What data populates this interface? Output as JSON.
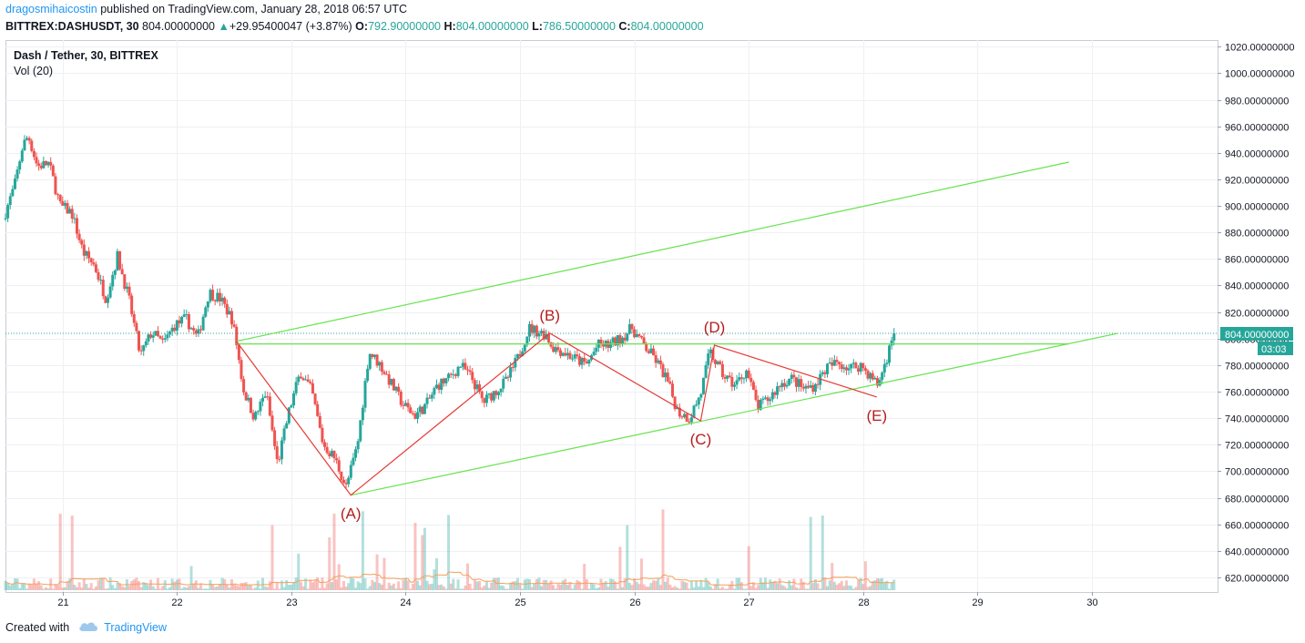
{
  "header": {
    "author": "dragosmihaicostin",
    "published": "published on TradingView.com, January 28, 2018 06:57 UTC",
    "symbol": "BITTREX:DASHUSDT, 30",
    "last": "804.00000000",
    "change": "+29.95400047 (+3.87%)",
    "o_label": "O:",
    "o_value": "792.90000000",
    "h_label": "H:",
    "h_value": "804.00000000",
    "l_label": "L:",
    "l_value": "786.50000000",
    "c_label": "C:",
    "c_value": "804.00000000"
  },
  "pane": {
    "title": "Dash / Tether, 30, BITTREX",
    "indicator": "Vol (20)",
    "price_tag": "804.00000000",
    "countdown": "03:03"
  },
  "footer": {
    "created_with": "Created with",
    "brand": "TradingView"
  },
  "colors": {
    "up": "#26a69a",
    "down": "#ef5350",
    "channel": "#66e34c",
    "wave": "#e53935",
    "wave_label": "#b71c1c",
    "price_tag_bg": "#26a69a"
  },
  "chart_data": {
    "type": "candlestick",
    "title": "Dash / Tether, 30, BITTREX",
    "yaxis": {
      "ticks": [
        "620.00000000",
        "640.00000000",
        "660.00000000",
        "680.00000000",
        "700.00000000",
        "720.00000000",
        "740.00000000",
        "760.00000000",
        "780.00000000",
        "800.00000000",
        "820.00000000",
        "840.00000000",
        "860.00000000",
        "880.00000000",
        "900.00000000",
        "920.00000000",
        "940.00000000",
        "960.00000000",
        "980.00000000",
        "1000.00000000",
        "1020.00000000"
      ],
      "range": [
        609,
        1025
      ]
    },
    "xaxis": {
      "ticks": [
        "21",
        "22",
        "23",
        "24",
        "25",
        "26",
        "27",
        "28",
        "29",
        "30"
      ],
      "range": [
        20.5,
        31.1
      ]
    },
    "price_path": [
      [
        20.5,
        890
      ],
      [
        20.6,
        915
      ],
      [
        20.67,
        945
      ],
      [
        20.72,
        953
      ],
      [
        20.8,
        930
      ],
      [
        20.9,
        932
      ],
      [
        21.0,
        900
      ],
      [
        21.1,
        895
      ],
      [
        21.2,
        865
      ],
      [
        21.3,
        855
      ],
      [
        21.4,
        830
      ],
      [
        21.5,
        862
      ],
      [
        21.6,
        830
      ],
      [
        21.7,
        787
      ],
      [
        21.8,
        805
      ],
      [
        21.9,
        796
      ],
      [
        22.0,
        810
      ],
      [
        22.1,
        815
      ],
      [
        22.2,
        800
      ],
      [
        22.3,
        835
      ],
      [
        22.4,
        830
      ],
      [
        22.5,
        815
      ],
      [
        22.54,
        797
      ],
      [
        22.6,
        762
      ],
      [
        22.7,
        740
      ],
      [
        22.8,
        760
      ],
      [
        22.9,
        705
      ],
      [
        23.0,
        745
      ],
      [
        23.1,
        775
      ],
      [
        23.2,
        760
      ],
      [
        23.3,
        720
      ],
      [
        23.4,
        710
      ],
      [
        23.5,
        688
      ],
      [
        23.6,
        720
      ],
      [
        23.7,
        790
      ],
      [
        23.8,
        780
      ],
      [
        23.9,
        765
      ],
      [
        24.0,
        750
      ],
      [
        24.1,
        742
      ],
      [
        24.2,
        750
      ],
      [
        24.3,
        765
      ],
      [
        24.4,
        770
      ],
      [
        24.5,
        780
      ],
      [
        24.6,
        770
      ],
      [
        24.7,
        752
      ],
      [
        24.8,
        760
      ],
      [
        24.9,
        768
      ],
      [
        25.0,
        785
      ],
      [
        25.1,
        808
      ],
      [
        25.25,
        803
      ],
      [
        25.3,
        794
      ],
      [
        25.4,
        790
      ],
      [
        25.5,
        785
      ],
      [
        25.6,
        780
      ],
      [
        25.7,
        795
      ],
      [
        25.8,
        795
      ],
      [
        25.9,
        800
      ],
      [
        26.0,
        808
      ],
      [
        26.1,
        795
      ],
      [
        26.2,
        785
      ],
      [
        26.3,
        770
      ],
      [
        26.4,
        745
      ],
      [
        26.5,
        740
      ],
      [
        26.6,
        758
      ],
      [
        26.68,
        790
      ],
      [
        26.8,
        772
      ],
      [
        26.9,
        765
      ],
      [
        27.0,
        776
      ],
      [
        27.1,
        748
      ],
      [
        27.2,
        755
      ],
      [
        27.3,
        766
      ],
      [
        27.4,
        770
      ],
      [
        27.5,
        762
      ],
      [
        27.6,
        765
      ],
      [
        27.7,
        778
      ],
      [
        27.8,
        782
      ],
      [
        27.9,
        778
      ],
      [
        28.0,
        780
      ],
      [
        28.1,
        770
      ],
      [
        28.15,
        765
      ],
      [
        28.2,
        778
      ],
      [
        28.25,
        792
      ],
      [
        28.28,
        804
      ]
    ],
    "volume_baseline_ma": [
      614,
      619
    ],
    "last_price": 804,
    "annotations": {
      "waves": [
        "(A)",
        "(B)",
        "(C)",
        "(D)",
        "(E)"
      ],
      "wave_points": [
        [
          22.52,
          798
        ],
        [
          23.52,
          682
        ],
        [
          25.26,
          804
        ],
        [
          26.58,
          738
        ],
        [
          26.7,
          795
        ],
        [
          28.12,
          756
        ]
      ],
      "channel_lines": [
        {
          "from": [
            22.52,
            798
          ],
          "to": [
            29.8,
            933
          ]
        },
        {
          "from": [
            22.52,
            796
          ],
          "to": [
            29.8,
            796
          ]
        },
        {
          "from": [
            23.52,
            682
          ],
          "to": [
            30.23,
            804
          ]
        }
      ],
      "last_price_line": 804
    }
  }
}
